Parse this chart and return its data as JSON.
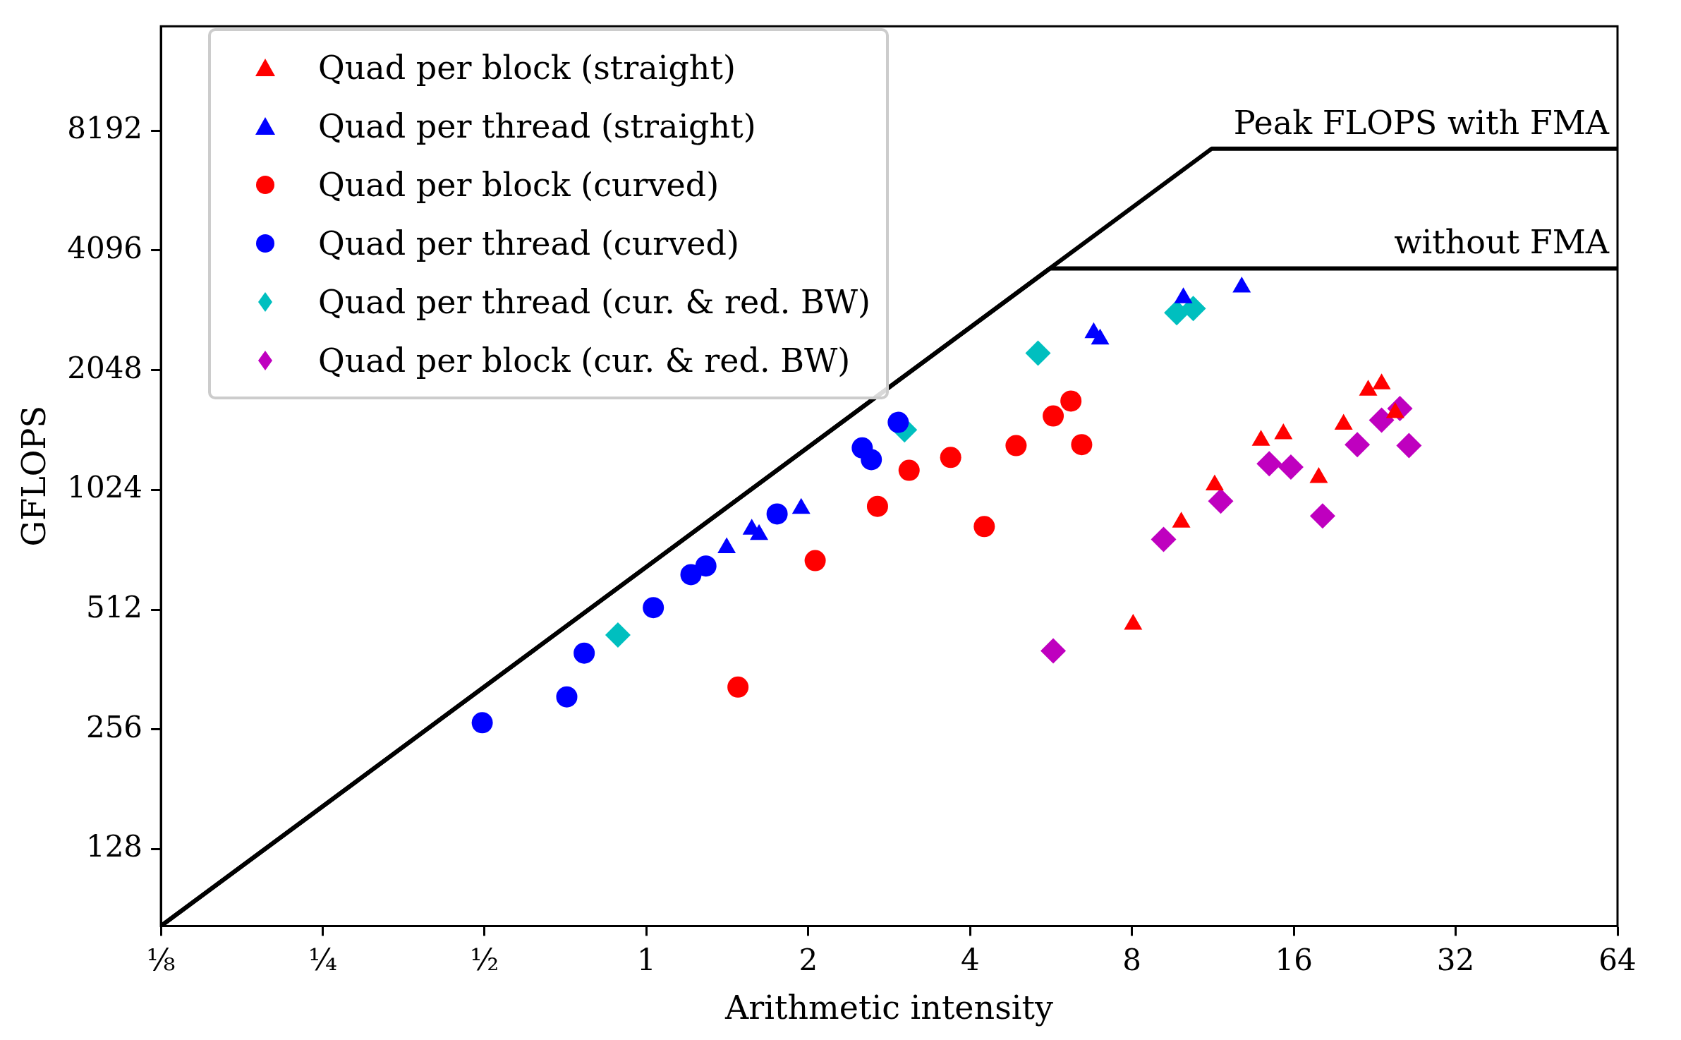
{
  "chart_data": {
    "type": "scatter",
    "xlabel": "Arithmetic intensity",
    "ylabel": "GFLOPS",
    "log": "xy",
    "grid": false,
    "legend": "top left",
    "xlim": [
      0.125,
      64
    ],
    "xticks": [
      {
        "value": 0.125,
        "label": "⅛"
      },
      {
        "value": 0.25,
        "label": "¼"
      },
      {
        "value": 0.5,
        "label": "½"
      },
      1,
      2,
      4,
      8,
      16,
      32,
      64
    ],
    "ylim": [
      82,
      15000
    ],
    "yticks": [
      128,
      256,
      512,
      1024,
      2048,
      4096,
      8192
    ],
    "annotations": [
      {
        "text": "Peak FLOPS with FMA",
        "x": 64,
        "y": 7380
      },
      {
        "text": "without FMA",
        "x": 64,
        "y": 3690
      }
    ],
    "series": [
      {
        "name": "Quad per block (straight)",
        "color": "#ff0000",
        "marker": "triangle",
        "x": [
          8.04,
          9.88,
          11.4,
          13.9,
          15.3,
          17.8,
          19.8,
          22.0,
          23.3,
          24.7
        ],
        "values": [
          470,
          849,
          1053,
          1363,
          1416,
          1099,
          1496,
          1822,
          1890,
          1600
        ]
      },
      {
        "name": "Quad per thread (straight)",
        "color": "#0000ff",
        "marker": "triangle",
        "x": [
          1.41,
          1.57,
          1.62,
          1.94,
          6.79,
          6.98,
          9.97,
          12.8
        ],
        "values": [
          732,
          815,
          790,
          919,
          2541,
          2449,
          3112,
          3311
        ]
      },
      {
        "name": "Quad per block (curved)",
        "color": "#ff0000",
        "marker": "circle",
        "x": [
          1.48,
          2.06,
          2.69,
          3.08,
          3.68,
          4.25,
          4.87,
          5.71,
          6.16,
          6.45
        ],
        "values": [
          327,
          680,
          931,
          1147,
          1236,
          828,
          1323,
          1571,
          1713,
          1331
        ]
      },
      {
        "name": "Quad per thread (curved)",
        "color": "#0000ff",
        "marker": "circle",
        "x": [
          0.495,
          0.711,
          0.766,
          1.03,
          1.21,
          1.29,
          1.75,
          2.52,
          2.62,
          2.94
        ],
        "values": [
          266,
          309,
          398,
          518,
          627,
          659,
          891,
          1306,
          1220,
          1514
        ]
      },
      {
        "name": "Quad per thread (cur. & red. BW)",
        "color": "#00bfbf",
        "marker": "diamond",
        "x": [
          0.885,
          3.02,
          5.35,
          9.69,
          10.4
        ],
        "values": [
          442,
          1450,
          2260,
          2856,
          2928
        ]
      },
      {
        "name": "Quad per block (cur. & red. BW)",
        "color": "#bf00bf",
        "marker": "diamond",
        "x": [
          5.71,
          9.16,
          11.7,
          14.4,
          15.8,
          18.1,
          21.0,
          23.3,
          25.2,
          26.2
        ],
        "values": [
          403,
          769,
          960,
          1191,
          1169,
          881,
          1331,
          1533,
          1641,
          1323
        ]
      },
      {
        "type": "line",
        "color": "#000000",
        "marker": "none",
        "x": [
          0.125,
          11.25,
          64
        ],
        "values": [
          82,
          7380,
          7380
        ]
      },
      {
        "type": "line",
        "color": "#000000",
        "marker": "none",
        "x": [
          0.125,
          5.63,
          64
        ],
        "values": [
          82,
          3690,
          3690
        ]
      }
    ]
  }
}
